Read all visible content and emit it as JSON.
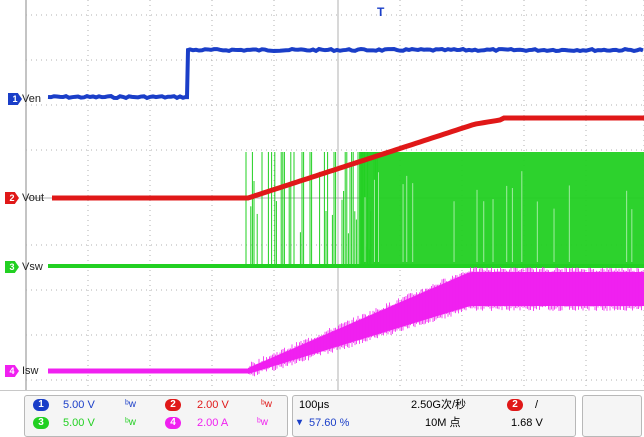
{
  "channels": [
    {
      "id": "1",
      "label": "Ven",
      "color": "#1a3ec8"
    },
    {
      "id": "2",
      "label": "Vout",
      "color": "#e01818"
    },
    {
      "id": "3",
      "label": "Vsw",
      "color": "#22d022"
    },
    {
      "id": "4",
      "label": "Isw",
      "color": "#f020f0"
    }
  ],
  "trigger_marker": "T",
  "status": {
    "ch1": {
      "badge": "1",
      "scale": "5.00 V"
    },
    "ch2": {
      "badge": "2",
      "scale": "2.00 V"
    },
    "ch3": {
      "badge": "3",
      "scale": "5.00 V"
    },
    "ch4": {
      "badge": "4",
      "scale": "2.00 A"
    },
    "timebase": "100μs",
    "trigger_position": "57.60 %",
    "sample_rate": "2.50G次/秒",
    "record_length": "10M 点",
    "trigger_channel": "2",
    "trigger_slope": "/",
    "trigger_level": "1.68 V"
  },
  "colors": {
    "grid": "#b0b0b0",
    "status_text_ch1": "#1a3ec8",
    "status_text_ch2": "#e01818",
    "status_text_ch3": "#22d022",
    "status_text_ch4": "#f020f0"
  }
}
